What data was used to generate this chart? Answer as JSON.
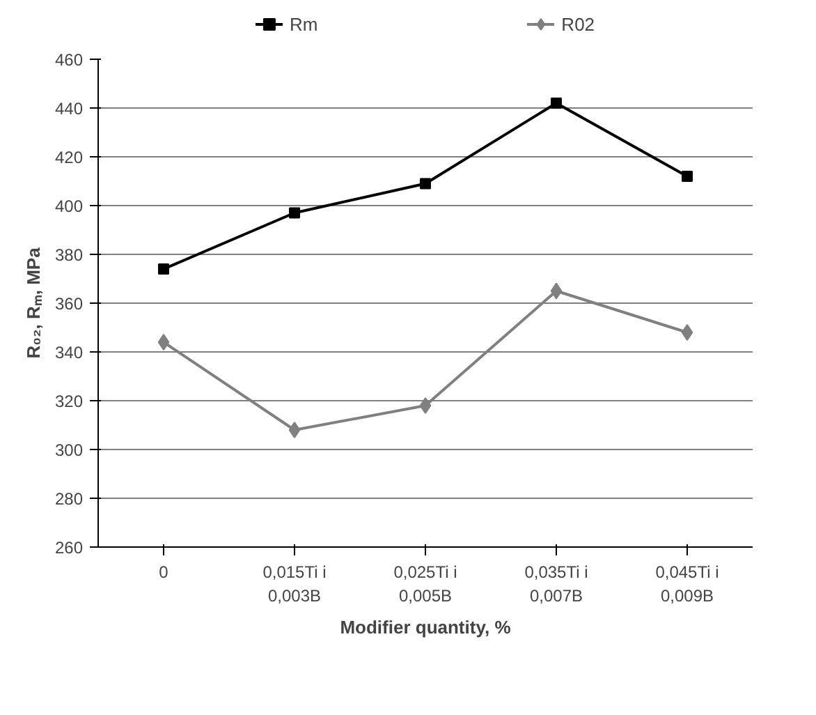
{
  "chart_data": {
    "type": "line",
    "xlabel": "Modifier quantity, %",
    "ylabel": "R₀₂, Rₘ, MPa",
    "categories": [
      "0",
      "0,015Ti i 0,003B",
      "0,025Ti i 0,005B",
      "0,035Ti i 0,007B",
      "0,045Ti i 0,009B"
    ],
    "series": [
      {
        "name": "Rm",
        "color": "#000000",
        "marker": "square",
        "values": [
          374,
          397,
          409,
          442,
          412
        ]
      },
      {
        "name": "R02",
        "color": "#808080",
        "marker": "diamond",
        "values": [
          344,
          308,
          318,
          365,
          348
        ]
      }
    ],
    "ylim": [
      260,
      460
    ],
    "yticks": [
      260,
      280,
      300,
      320,
      340,
      360,
      380,
      400,
      420,
      440,
      460
    ],
    "grid": "y",
    "legend": "top",
    "line_style": "solid"
  }
}
